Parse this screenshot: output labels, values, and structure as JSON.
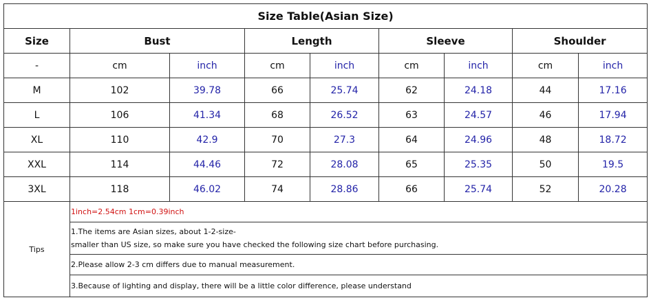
{
  "title": "Size Table(Asian Size)",
  "header": [
    "Size",
    "Bust",
    "Length",
    "Sleeve",
    "Shoulder"
  ],
  "units": [
    "-",
    "cm",
    "inch",
    "cm",
    "inch",
    "cm",
    "inch",
    "cm",
    "inch"
  ],
  "rows": [
    [
      "M",
      102,
      39.78,
      66,
      25.74,
      62,
      24.18,
      44,
      17.16
    ],
    [
      "L",
      106,
      41.34,
      68,
      26.52,
      63,
      24.57,
      46,
      17.94
    ],
    [
      "XL",
      110,
      42.9,
      70,
      27.3,
      64,
      24.96,
      48,
      18.72
    ],
    [
      "XXL",
      114,
      44.46,
      72,
      28.08,
      65,
      25.35,
      50,
      19.5
    ],
    [
      "3XL",
      118,
      46.02,
      74,
      28.86,
      66,
      25.74,
      52,
      20.28
    ]
  ],
  "tips": {
    "label": "Tips",
    "lines": [
      [
        "1inch=2.54cm 1cm=0.39inch"
      ],
      [
        "1.The items are Asian sizes, about 1-2-size-",
        "smaller than US size, so make sure you have checked the following size chart before purchasing."
      ],
      [
        "2.Please allow 2-3 cm differs due to manual measurement."
      ],
      [
        "3.Because of lighting and display, there will be a little color difference, please understand"
      ]
    ]
  }
}
